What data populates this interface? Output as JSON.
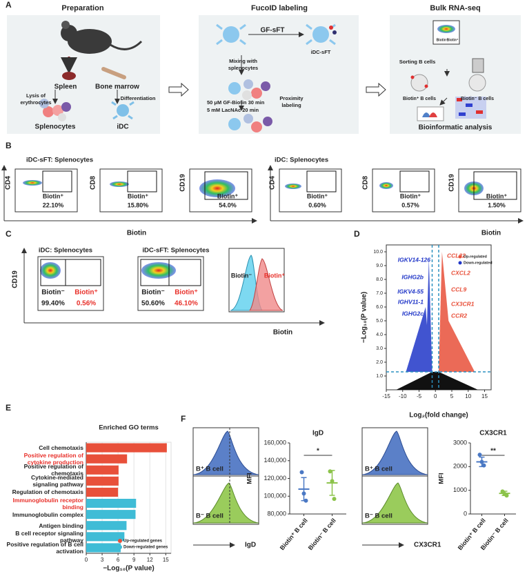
{
  "panel_labels": [
    "A",
    "B",
    "C",
    "D",
    "E",
    "F"
  ],
  "panel_a": {
    "titles": [
      "Preparation",
      "FucoID labeling",
      "Bulk RNA-seq"
    ],
    "preparation": {
      "organs": [
        "Spleen",
        "Bone marrow"
      ],
      "steps": [
        "Lysis of erythrocytes",
        "Differentiation"
      ],
      "cells": [
        "Splenocytes",
        "iDC"
      ]
    },
    "labeling": {
      "probe": "GF-sFT",
      "product": "iDC-sFT",
      "mixing": "Mixing with splenocytes",
      "conditions": [
        "50 μM GF-Biotin 30 min",
        "5 mM LacNAc 20 min"
      ],
      "step": "Proximity labeling"
    },
    "rnaseq": {
      "gate_labels": [
        "Biotin⁻",
        "Biotin⁺"
      ],
      "sorting": "Sorting B cells",
      "populations": [
        "Biotin⁺ B cells",
        "Biotin⁻ B cells"
      ],
      "analysis": "Bioinformatic analysis"
    }
  },
  "panel_b": {
    "groups": [
      "iDC-sFT: Splenocytes",
      "iDC: Splenocytes"
    ],
    "x_label": "Biotin",
    "gate_label": "Biotin⁺",
    "plots": [
      {
        "marker": "CD4",
        "percent": "22.10%"
      },
      {
        "marker": "CD8",
        "percent": "15.80%"
      },
      {
        "marker": "CD19",
        "percent": "54.0%"
      },
      {
        "marker": "CD4",
        "percent": "0.60%"
      },
      {
        "marker": "CD8",
        "percent": "0.57%"
      },
      {
        "marker": "CD19",
        "percent": "1.50%"
      }
    ]
  },
  "panel_c": {
    "titles": [
      "iDC: Splenocytes",
      "iDC-sFT: Splenocytes"
    ],
    "y_label": "CD19",
    "x_label": "Biotin",
    "gate_labels": [
      "Biotin⁻",
      "Biotin⁺"
    ],
    "percents": [
      [
        "99.40%",
        "0.56%"
      ],
      [
        "50.60%",
        "46.10%"
      ]
    ],
    "histogram_labels": [
      "Biotin⁻",
      "Biotin⁺"
    ]
  },
  "panel_f": {
    "histograms": [
      {
        "x_label": "IgD",
        "labels": [
          "B⁺ B cell",
          "B⁻ B cell"
        ]
      },
      {
        "x_label": "CX3CR1",
        "labels": [
          "B⁺ B cell",
          "B⁻ B cell"
        ]
      }
    ]
  },
  "chart_data": [
    {
      "type": "volcano",
      "x_label": "Log₂(fold change)",
      "y_label": "−Log₁₀(P value)",
      "xlim": [
        -15,
        17
      ],
      "xticks": [
        -15,
        -10,
        -5,
        0,
        5,
        10,
        15
      ],
      "ylim": [
        0,
        10.5
      ],
      "yticks": [
        {
          "value": 1,
          "label": "1.0"
        },
        {
          "value": 2,
          "label": "2.0"
        },
        {
          "value": 3,
          "label": "3.0"
        },
        {
          "value": 4,
          "label": "4.0"
        },
        {
          "value": 5,
          "label": "5.0"
        },
        {
          "value": 6,
          "label": "6.0"
        },
        {
          "value": 7,
          "label": "7.0"
        },
        {
          "value": 8,
          "label": "8.0"
        },
        {
          "value": 9,
          "label": "9.0"
        },
        {
          "value": 10,
          "label": "10.0"
        }
      ],
      "thresholds": {
        "x": [
          -1,
          1
        ],
        "y": 1.3
      },
      "series": [
        {
          "name": "Up-regulated",
          "color": "#e8503a",
          "labels": [
            "CCL22",
            "CXCL2",
            "CCL9",
            "CX3CR1",
            "CCR2"
          ]
        },
        {
          "name": "Down-regulated",
          "color": "#2036c8",
          "labels": [
            "IGKV14-126",
            "IGHG2b",
            "IGKV4-55",
            "IGHV11-1",
            "IGHG2c"
          ]
        }
      ]
    },
    {
      "type": "bar",
      "orientation": "horizontal",
      "title": "Enriched GO terms",
      "x_label": "−Log₁₀(P value)",
      "categories": [
        "Cell chemotaxis",
        "Positive regulation of cytokine production",
        "Positive regulation of chemotaxis",
        "Cytokine-mediated signaling pathway",
        "Regulation of chemotaxis",
        "Immunoglobulin receptor binding",
        "Immunoglobulin complex",
        "Antigen binding",
        "B cell receptor signaling pathway",
        "Positive regulation of B cell activation"
      ],
      "category_colors": [
        "#222222",
        "#e8302a",
        "#222222",
        "#222222",
        "#222222",
        "#e8302a",
        "#222222",
        "#222222",
        "#222222",
        "#222222"
      ],
      "series": [
        {
          "name": "Up-regulated genes",
          "color": "#e8503a",
          "values": [
            15.2,
            7.7,
            6.1,
            6.1,
            6.0,
            null,
            null,
            null,
            null,
            null
          ]
        },
        {
          "name": "Down-regulated genes",
          "color": "#3fbcd6",
          "values": [
            null,
            null,
            null,
            null,
            null,
            9.4,
            9.3,
            7.6,
            7.2,
            6.5
          ]
        }
      ],
      "xlim": [
        0,
        16
      ],
      "xticks": [
        0,
        3,
        6,
        9,
        12,
        15
      ],
      "grid": true
    },
    {
      "type": "dot",
      "title": "IgD",
      "y_label": "MFI",
      "categories": [
        "Biotin⁺ B cell",
        "Biotin⁻ B cell"
      ],
      "colors": [
        "#4a78c4",
        "#8cc34a"
      ],
      "points": [
        [
          127000,
          103000,
          95000
        ],
        [
          128000,
          117000,
          97000
        ]
      ],
      "means": [
        108000,
        115000
      ],
      "sd": [
        13000,
        14000
      ],
      "ylim": [
        80000,
        160000
      ],
      "yticks": [
        {
          "value": 80000,
          "label": "80,000"
        },
        {
          "value": 100000,
          "label": "100,000"
        },
        {
          "value": 120000,
          "label": "120,000"
        },
        {
          "value": 140000,
          "label": "140,000"
        },
        {
          "value": 160000,
          "label": "160,000"
        }
      ],
      "significance": "*"
    },
    {
      "type": "dot",
      "title": "CX3CR1",
      "y_label": "MFI",
      "categories": [
        "Biotin⁺ B cell",
        "Biotin⁻ B cell"
      ],
      "colors": [
        "#4a78c4",
        "#8cc34a"
      ],
      "points": [
        [
          2500,
          2200,
          2050
        ],
        [
          950,
          850,
          780
        ]
      ],
      "means": [
        2200,
        870
      ],
      "sd": [
        200,
        90
      ],
      "ylim": [
        0,
        3000
      ],
      "yticks": [
        0,
        1000,
        2000,
        3000
      ],
      "significance": "**"
    }
  ]
}
